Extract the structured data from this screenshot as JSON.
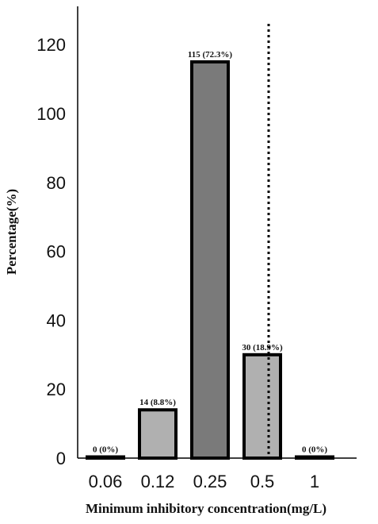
{
  "chart_data": {
    "type": "bar",
    "title": "",
    "xlabel": "Minimum inhibitory concentration(mg/L)",
    "ylabel": "Percentage(%)",
    "ylim": [
      0,
      130
    ],
    "yticks": [
      0,
      20,
      40,
      60,
      80,
      100,
      120
    ],
    "ytick_labels": [
      "0",
      "20",
      "40",
      "60",
      "80",
      "100",
      "120"
    ],
    "categories": [
      "0.06",
      "0.12",
      "0.25",
      "0.5",
      "1"
    ],
    "values": [
      0,
      14,
      115,
      30,
      0
    ],
    "data_labels": [
      "0 (0%)",
      "14 (8.8%)",
      "115 (72.3%)",
      "30 (18.9%)",
      "0 (0%)"
    ],
    "bar_colors": [
      "#b0b0b0",
      "#b0b0b0",
      "#7a7a7a",
      "#b0b0b0",
      "#b0b0b0"
    ],
    "bar_edge_color": "#000000",
    "breakpoint_line": {
      "x_category": "0.5",
      "style": "dotted",
      "color": "#000000"
    },
    "grid": false,
    "legend": "none"
  }
}
